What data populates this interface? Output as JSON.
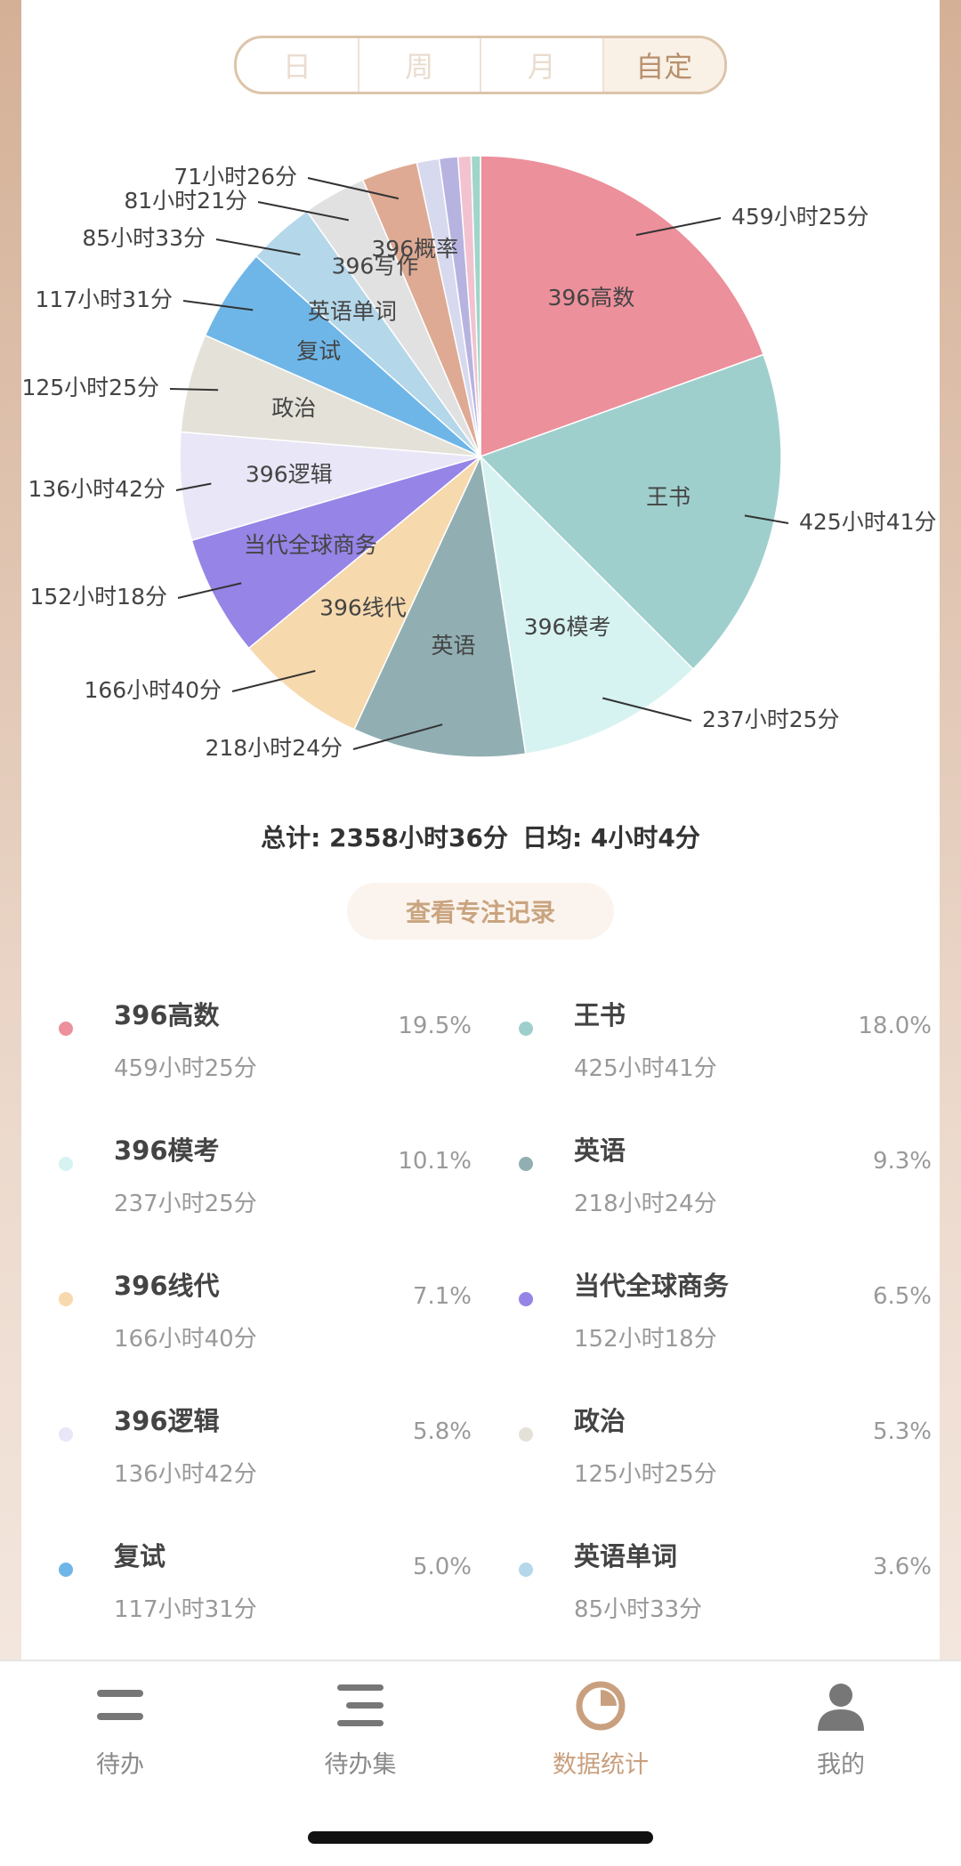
{
  "segments": [
    "日",
    "周",
    "月",
    "自定"
  ],
  "chart_data": {
    "type": "pie",
    "categories": [
      "396高数",
      "王书",
      "396模考",
      "英语",
      "396线代",
      "当代全球商务",
      "396逻辑",
      "政治",
      "复试",
      "英语单词",
      "396写作",
      "396概率",
      null,
      null,
      null,
      null
    ],
    "values": [
      19.5,
      18.0,
      10.1,
      9.3,
      7.1,
      6.5,
      5.8,
      5.3,
      5.0,
      3.6,
      3.4,
      3.0,
      1.2,
      1.0,
      0.7,
      0.5
    ],
    "value_labels": [
      "19.5%",
      "18.0%",
      "10.1%",
      "9.3%",
      "7.1%",
      "6.5%",
      "5.8%",
      "5.3%",
      "5.0%",
      "3.6%",
      null,
      null,
      null,
      null,
      null,
      null
    ],
    "duration_labels": [
      "459小时25分",
      "425小时41分",
      "237小时25分",
      "218小时24分",
      "166小时40分",
      "152小时18分",
      "136小时42分",
      "125小时25分",
      "117小时31分",
      "85小时33分",
      "81小时21分",
      "71小时26分",
      null,
      null,
      null,
      null
    ],
    "colors": [
      "#ec909b",
      "#9fcfcd",
      "#d6f3f1",
      "#91afb3",
      "#f7d9ae",
      "#9684e6",
      "#e9e6f7",
      "#e4e1d9",
      "#6fb6e8",
      "#b5d7ea",
      "#e1e1e1",
      "#deaa94",
      "#d7d9ee",
      "#b7b3e0",
      "#f2c2d0",
      "#9fd6c9"
    ]
  },
  "summary": {
    "total": "总计: 2358小时36分",
    "daily": "日均: 4小时4分"
  },
  "button": "查看专注记录",
  "nav": [
    "待办",
    "待办集",
    "数据统计",
    "我的"
  ]
}
